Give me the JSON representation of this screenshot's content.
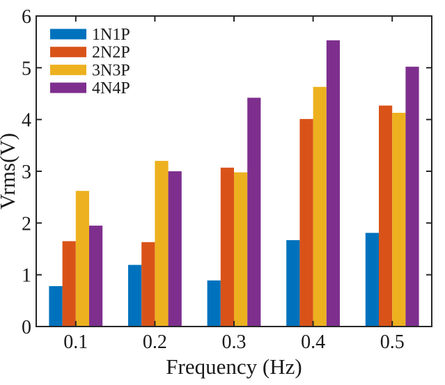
{
  "figure": {
    "background": "#ffffff",
    "axis_color": "#262626",
    "text_color": "#1a1a1a"
  },
  "chart_data": {
    "type": "bar",
    "title": "",
    "xlabel": "Frequency (Hz)",
    "ylabel": "Vrms(V)",
    "categories": [
      "0.1",
      "0.2",
      "0.3",
      "0.4",
      "0.5"
    ],
    "series": [
      {
        "name": "1N1P",
        "color": "#0072BD",
        "values": [
          0.78,
          1.19,
          0.89,
          1.67,
          1.81
        ]
      },
      {
        "name": "2N2P",
        "color": "#D95319",
        "values": [
          1.65,
          1.63,
          3.07,
          4.01,
          4.27
        ]
      },
      {
        "name": "3N3P",
        "color": "#EDB120",
        "values": [
          2.62,
          3.2,
          2.98,
          4.63,
          4.13
        ]
      },
      {
        "name": "4N4P",
        "color": "#7E2F8E",
        "values": [
          1.95,
          3.0,
          4.42,
          5.53,
          5.02
        ]
      }
    ],
    "ylim": [
      0,
      6
    ],
    "yticks": [
      "0",
      "1",
      "2",
      "3",
      "4",
      "5",
      "6"
    ],
    "grid": false,
    "legend_position": "top-left",
    "legend_border": false,
    "bar_group_style": "grouped-touching"
  }
}
